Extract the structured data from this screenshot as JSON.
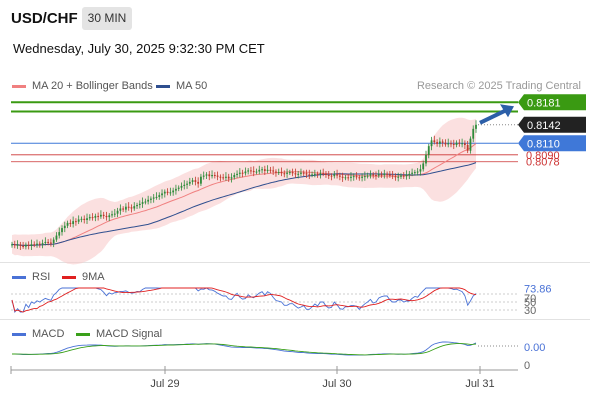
{
  "header": {
    "symbol": "USD/CHF",
    "timeframe": "30 MIN",
    "datetime": "Wednesday, July 30, 2025 9:32:30 PM CET"
  },
  "legend_main": [
    {
      "label": "MA 20 + Bollinger Bands",
      "color": "#f08080"
    },
    {
      "label": "MA 50",
      "color": "#2f4f8f"
    }
  ],
  "watermark": "Research © 2025 Trading Central",
  "price_labels": {
    "target": "0.8181",
    "target_hidden": "0.8165",
    "last": "0.8142",
    "pivot": "0.8110",
    "support1": "0.8090",
    "support2": "0.8078"
  },
  "rsi": {
    "legend": [
      {
        "label": "RSI",
        "color": "#4a72d6"
      },
      {
        "label": "9MA",
        "color": "#e02020"
      }
    ],
    "value": "73.86",
    "level_70": "70",
    "level_50": "50",
    "level_30": "30"
  },
  "macd": {
    "legend": [
      {
        "label": "MACD",
        "color": "#4a72d6"
      },
      {
        "label": "MACD Signal",
        "color": "#3aa01a"
      }
    ],
    "value": "0.00",
    "zero": "0"
  },
  "x_axis": [
    "Jul 29",
    "Jul 30",
    "Jul 31"
  ],
  "colors": {
    "bull": "#2e8b3a",
    "bear": "#c0392b",
    "target_green": "#3a9a12",
    "pivot_blue": "#3f78d8",
    "support_red": "#cc3333",
    "band_fill": "#f7c7c7",
    "arrow": "#2c5fa8"
  },
  "chart_data": [
    {
      "type": "candlestick",
      "title": "USD/CHF 30 MIN",
      "series": [
        {
          "name": "MA 20 + Bollinger Bands"
        },
        {
          "name": "MA 50"
        }
      ],
      "closes": [
        0.7935,
        0.7933,
        0.7934,
        0.7932,
        0.7931,
        0.7934,
        0.7932,
        0.7935,
        0.7934,
        0.7936,
        0.7935,
        0.7937,
        0.7939,
        0.7938,
        0.7937,
        0.7943,
        0.795,
        0.7956,
        0.7963,
        0.7967,
        0.7972,
        0.797,
        0.7975,
        0.7974,
        0.7978,
        0.7979,
        0.7977,
        0.798,
        0.7982,
        0.7981,
        0.7984,
        0.7983,
        0.7986,
        0.7984,
        0.7982,
        0.7985,
        0.7987,
        0.7988,
        0.7993,
        0.7997,
        0.7995,
        0.8,
        0.7999,
        0.7997,
        0.8001,
        0.8003,
        0.8005,
        0.8008,
        0.8009,
        0.8012,
        0.8014,
        0.8016,
        0.8017,
        0.802,
        0.8023,
        0.8026,
        0.8024,
        0.8025,
        0.8028,
        0.8031,
        0.8033,
        0.8036,
        0.8038,
        0.804,
        0.8043,
        0.8046,
        0.8043,
        0.804,
        0.8052,
        0.8054,
        0.8056,
        0.8053,
        0.8055,
        0.8054,
        0.8052,
        0.8051,
        0.805,
        0.8052,
        0.8049,
        0.8051,
        0.8055,
        0.8057,
        0.8059,
        0.8058,
        0.8061,
        0.8063,
        0.8062,
        0.806,
        0.8061,
        0.8064,
        0.8065,
        0.8062,
        0.8064,
        0.8063,
        0.8061,
        0.8059,
        0.806,
        0.8058,
        0.8057,
        0.8059,
        0.806,
        0.8058,
        0.8056,
        0.8057,
        0.8059,
        0.8058,
        0.8056,
        0.8055,
        0.8056,
        0.8057,
        0.8056,
        0.8058,
        0.8057,
        0.8055,
        0.8054,
        0.8053,
        0.8056,
        0.8054,
        0.8052,
        0.805,
        0.8051,
        0.805,
        0.8052,
        0.8053,
        0.8051,
        0.805,
        0.8052,
        0.8053,
        0.8054,
        0.8056,
        0.8055,
        0.8054,
        0.8056,
        0.8055,
        0.8057,
        0.8056,
        0.8054,
        0.8053,
        0.8051,
        0.8052,
        0.8054,
        0.8053,
        0.8055,
        0.8057,
        0.8059,
        0.806,
        0.8061,
        0.8065,
        0.8075,
        0.809,
        0.8105,
        0.8115,
        0.8112,
        0.8109,
        0.8113,
        0.8111,
        0.8108,
        0.811,
        0.8109,
        0.8107,
        0.8111,
        0.8109,
        0.811,
        0.8107,
        0.8097,
        0.8118,
        0.8135,
        0.8142
      ],
      "ma50_value": 0.8073,
      "ylim": [
        0.7925,
        0.8185
      ]
    },
    {
      "type": "line",
      "title": "RSI",
      "series": [
        {
          "name": "RSI"
        },
        {
          "name": "9MA"
        }
      ],
      "last_value": 73.86,
      "levels": [
        70,
        50,
        30
      ]
    },
    {
      "type": "line",
      "title": "MACD",
      "series": [
        {
          "name": "MACD"
        },
        {
          "name": "MACD Signal"
        }
      ],
      "last_value": 0.0,
      "levels": [
        0
      ]
    }
  ]
}
